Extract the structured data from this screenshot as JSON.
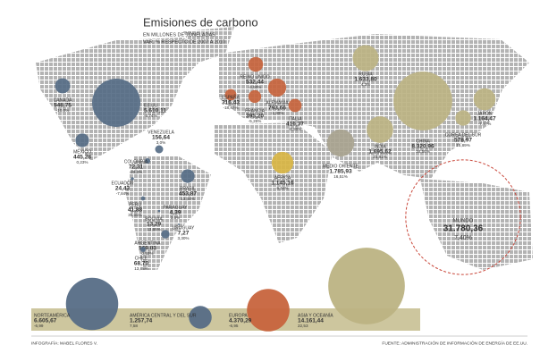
{
  "header": {
    "title": "Emisiones de carbono",
    "subtitle": "EN MILLONES DE TONELADAS",
    "note": "VAR. % RESPECTO DE 2007 A 2010"
  },
  "countries": [
    {
      "name": "CANADÁ",
      "value": 548.75,
      "value_label": "548,75",
      "change": "-10,0%",
      "color": "#566d86"
    },
    {
      "name": "EE.UU.",
      "value": 5610.11,
      "value_label": "5.610,11",
      "change": "-6,74%",
      "color": "#566d86"
    },
    {
      "name": "MÉXICO",
      "value": 445.28,
      "value_label": "445,28",
      "change": "0,23%",
      "color": "#566d86"
    },
    {
      "name": "VENEZUELA",
      "value": 156.64,
      "value_label": "156,64",
      "change": "3,0%",
      "color": "#566d86"
    },
    {
      "name": "COLOMBIA",
      "value": 72.31,
      "value_label": "72,31",
      "change": "-28,3%",
      "color": "#566d86"
    },
    {
      "name": "ECUADOR",
      "value": 24.43,
      "value_label": "24,43",
      "change": "-7,84%",
      "color": "#566d86"
    },
    {
      "name": "BRASIL",
      "value": 453.87,
      "value_label": "453,87",
      "change": "13,04%",
      "color": "#566d86"
    },
    {
      "name": "PERÚ",
      "value": 41.88,
      "value_label": "41,88",
      "change": "30,05%",
      "color": "#566d86"
    },
    {
      "name": "BOLIVIA",
      "value": 13.29,
      "value_label": "13,29",
      "change": "13,65%",
      "color": "#566d86"
    },
    {
      "name": "PARAGUAY",
      "value": 4.39,
      "value_label": "4,39",
      "change": "3,5%",
      "color": "#566d86"
    },
    {
      "name": "URUGUAY",
      "value": 7.27,
      "value_label": "7,27",
      "change": "3,30%",
      "color": "#566d86"
    },
    {
      "name": "ARGENTINA",
      "value": 169.83,
      "value_label": "169,83",
      "change": "0,55%",
      "color": "#566d86"
    },
    {
      "name": "CHILE",
      "value": 68.7,
      "value_label": "68,70",
      "change": "13,88%",
      "color": "#566d86"
    },
    {
      "name": "REINO UNIDO",
      "value": 532.44,
      "value_label": "532,44",
      "change": "-4,50%",
      "color": "#c7643d"
    },
    {
      "name": "ESPAÑA",
      "value": 316.43,
      "value_label": "316,43",
      "change": "-18,47%",
      "color": "#c7643d"
    },
    {
      "name": "FRANCIA",
      "value": 395.2,
      "value_label": "395,20",
      "change": "-5,26%",
      "color": "#c7643d"
    },
    {
      "name": "ALEMANIA",
      "value": 793.66,
      "value_label": "793,66",
      "change": "-1,30%",
      "color": "#c7643d"
    },
    {
      "name": "ITALIA",
      "value": 416.37,
      "value_label": "416,37",
      "change": "-8,99%",
      "color": "#c7643d"
    },
    {
      "name": "ÁFRICA",
      "value": 1145.16,
      "value_label": "1.145,16",
      "change": "6,34%",
      "color": "#d8b544"
    },
    {
      "name": "MEDIO ORIENTE",
      "value": 1785.93,
      "value_label": "1.785,93",
      "change": "16,51%",
      "color": "#a8a38f"
    },
    {
      "name": "RUSIA",
      "value": 1633.8,
      "value_label": "1.633,80",
      "change": "4,3%",
      "color": "#bcb383"
    },
    {
      "name": "INDIA",
      "value": 1695.62,
      "value_label": "1.695,62",
      "change": "23,91%",
      "color": "#bcb383"
    },
    {
      "name": "CHINA",
      "value": 8320.96,
      "value_label": "8.320,96",
      "change": "34,55%",
      "color": "#bcb383"
    },
    {
      "name": "COREA DEL SUR",
      "value": 578.97,
      "value_label": "578,97",
      "change": "15,89%",
      "color": "#bcb383"
    },
    {
      "name": "JAPÓN",
      "value": 1164.47,
      "value_label": "1.164,47",
      "change": "-7,17%",
      "color": "#bcb383"
    }
  ],
  "world": {
    "name": "MUNDO",
    "value": 31780.36,
    "value_label": "31.780,36",
    "change": "7,40%",
    "color": "#c9473a"
  },
  "regions": [
    {
      "name": "NORTEAMÉRICA",
      "value": 6605.67,
      "value_label": "6.605,67",
      "change": "-6,99",
      "color": "#566d86"
    },
    {
      "name": "AMÉRICA CENTRAL Y DEL SUR",
      "value": 1257.74,
      "value_label": "1.257,74",
      "change": "7,58",
      "color": "#566d86"
    },
    {
      "name": "EUROPA",
      "value": 4370.29,
      "value_label": "4.370,29",
      "change": "-6,95",
      "color": "#c7643d"
    },
    {
      "name": "ASIA Y OCEANÍA",
      "value": 14161.44,
      "value_label": "14.161,44",
      "change": "22,53",
      "color": "#bcb383"
    }
  ],
  "footer": {
    "credit": "INFOGRAFÍA: MABEL FLORES V.",
    "source": "FUENTE: ADMINISTRACIÓN DE INFORMACIÓN DE ENERGÍA DE EE.UU."
  }
}
